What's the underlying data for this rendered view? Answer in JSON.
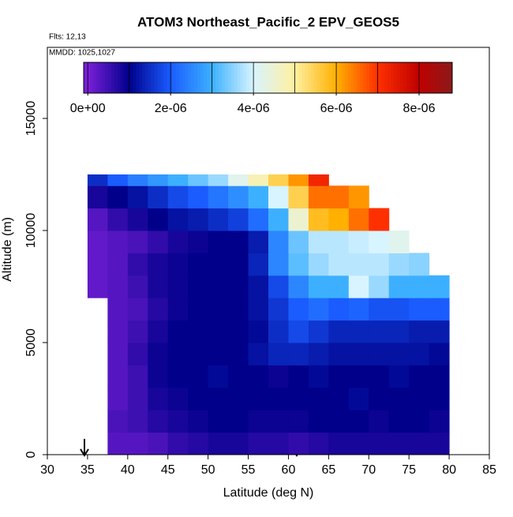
{
  "chart_data": {
    "type": "heatmap",
    "title": "ATOM3 Northeast_Pacific_2 EPV_GEOS5",
    "subtitle": "Flts: 12,13",
    "annotation": "MMDD: 1025,1027",
    "x_label": "Latitude (deg N)",
    "y_label": "Altitude (m)",
    "xlim": [
      30,
      85
    ],
    "xticks": [
      30,
      35,
      40,
      45,
      50,
      55,
      60,
      65,
      70,
      75,
      80,
      85
    ],
    "ylim": [
      0,
      18170
    ],
    "yticks": [
      0,
      5000,
      10000,
      15000
    ],
    "xbins": [
      35,
      37.5,
      40,
      42.5,
      45,
      47.5,
      50,
      52.5,
      55,
      57.5,
      60,
      62.5,
      65,
      67.5,
      70,
      72.5,
      75,
      77.5,
      80
    ],
    "ybins": [
      0,
      1000,
      2000,
      3000,
      4000,
      5000,
      6000,
      7000,
      8000,
      9000,
      10000,
      11000,
      12000,
      12500
    ],
    "values": [
      [
        null,
        3e-07,
        3e-07,
        4e-07,
        6e-07,
        7e-07,
        8e-07,
        8e-07,
        7e-07,
        7e-07,
        6e-07,
        7e-07,
        8e-07,
        8e-07,
        8e-07,
        8e-07,
        8e-07,
        8e-07
      ],
      [
        null,
        4e-07,
        5e-07,
        7e-07,
        8e-07,
        9e-07,
        1e-06,
        1e-06,
        9e-07,
        9e-07,
        9e-07,
        1e-06,
        1e-06,
        1e-06,
        9e-07,
        1e-06,
        1e-06,
        9e-07
      ],
      [
        null,
        3e-07,
        5e-07,
        8e-07,
        9e-07,
        1e-06,
        1e-06,
        1e-06,
        1e-06,
        1e-06,
        1e-06,
        1e-06,
        1e-06,
        1.1e-06,
        1e-06,
        1e-06,
        1e-06,
        1e-06
      ],
      [
        null,
        3e-07,
        5e-07,
        9e-07,
        1e-06,
        1e-06,
        1.1e-06,
        1e-06,
        1e-06,
        9e-07,
        1e-06,
        1.1e-06,
        1e-06,
        1e-06,
        1e-06,
        1.1e-06,
        1e-06,
        1e-06
      ],
      [
        null,
        3e-07,
        6e-07,
        9e-07,
        1e-06,
        1e-06,
        1e-06,
        1e-06,
        1.2e-06,
        1.4e-06,
        1.4e-06,
        1.3e-06,
        1.2e-06,
        1.2e-06,
        1.2e-06,
        1.2e-06,
        1.2e-06,
        1.1e-06
      ],
      [
        null,
        3e-07,
        5e-07,
        8e-07,
        1e-06,
        1e-06,
        1e-06,
        1e-06,
        1.1e-06,
        1.5e-06,
        1.8e-06,
        1.6e-06,
        1.4e-06,
        1.4e-06,
        1.4e-06,
        1.4e-06,
        1.3e-06,
        1.3e-06
      ],
      [
        null,
        3e-07,
        4e-07,
        7e-07,
        9e-07,
        1e-06,
        1e-06,
        1e-06,
        1.2e-06,
        1.6e-06,
        2e-06,
        2.2e-06,
        2e-06,
        2.1e-06,
        1.9e-06,
        1.9e-06,
        2e-06,
        2e-06
      ],
      [
        2e-07,
        3e-07,
        5e-07,
        8e-07,
        9e-07,
        1e-06,
        1e-06,
        1e-06,
        1.2e-06,
        1.8e-06,
        2.5e-06,
        3e-06,
        3e-06,
        4e-06,
        3.6e-06,
        3e-06,
        3e-06,
        3e-06
      ],
      [
        2e-07,
        3e-07,
        6e-07,
        8e-07,
        9e-07,
        1e-06,
        1e-06,
        1e-06,
        1.4e-06,
        2.5e-06,
        3.2e-06,
        3.6e-06,
        3.8e-06,
        3.8e-06,
        3.8e-06,
        3.6e-06,
        3.5e-06,
        null
      ],
      [
        2e-07,
        3e-07,
        4e-07,
        6e-07,
        8e-07,
        9e-07,
        1e-06,
        1e-06,
        1.3e-06,
        2.5e-06,
        3.3e-06,
        3.8e-06,
        3.8e-06,
        3.9e-06,
        4e-06,
        4.2e-06,
        null,
        null
      ],
      [
        3e-07,
        6e-07,
        8e-07,
        1e-06,
        1.2e-06,
        1.3e-06,
        1.5e-06,
        1.7e-06,
        2.2e-06,
        3e-06,
        4.5e-06,
        5.8e-06,
        6e-06,
        6.5e-06,
        7e-06,
        null,
        null,
        null
      ],
      [
        8e-07,
        1e-06,
        1.2e-06,
        1.5e-06,
        1.8e-06,
        2e-06,
        2.3e-06,
        2.6e-06,
        3e-06,
        4e-06,
        5.5e-06,
        6.5e-06,
        6.5e-06,
        6.2e-06,
        null,
        null,
        null,
        null
      ],
      [
        1.5e-06,
        2e-06,
        2.4e-06,
        2.7e-06,
        3e-06,
        3.3e-06,
        3.6e-06,
        4.2e-06,
        4.8e-06,
        5.5e-06,
        6.2e-06,
        7.2e-06,
        null,
        null,
        null,
        null,
        null,
        null
      ]
    ],
    "colorbar_lim": [
      -1e-07,
      8.8e-06
    ],
    "colorbar_ticks": [
      {
        "value": 0,
        "label": "0e+00"
      },
      {
        "value": 2e-06,
        "label": "2e-06"
      },
      {
        "value": 4e-06,
        "label": "4e-06"
      },
      {
        "value": 6e-06,
        "label": "6e-06"
      },
      {
        "value": 8e-06,
        "label": "8e-06"
      }
    ],
    "colorscale": [
      {
        "value": 0,
        "color": "#7a1fd8"
      },
      {
        "value": 1e-06,
        "color": "#00008b"
      },
      {
        "value": 2e-06,
        "color": "#1a5cff"
      },
      {
        "value": 3e-06,
        "color": "#3cb0ff"
      },
      {
        "value": 4e-06,
        "color": "#d8f4ff"
      },
      {
        "value": 5e-06,
        "color": "#fff0a0"
      },
      {
        "value": 6e-06,
        "color": "#ffb000"
      },
      {
        "value": 7e-06,
        "color": "#ff3000"
      },
      {
        "value": 8e-06,
        "color": "#c00000"
      },
      {
        "value": 8.8e-06,
        "color": "#8b1a1a"
      }
    ]
  }
}
